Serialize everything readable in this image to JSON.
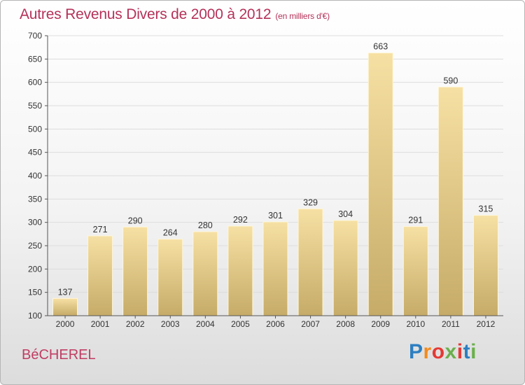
{
  "header": {
    "title": "Autres Revenus Divers de 2000 à 2012",
    "unit": "(en milliers d'€)"
  },
  "commune": "BéCHEREL",
  "logo": {
    "text": "Proxiti"
  },
  "chart_data": {
    "type": "bar",
    "categories": [
      "2000",
      "2001",
      "2002",
      "2003",
      "2004",
      "2005",
      "2006",
      "2007",
      "2008",
      "2009",
      "2010",
      "2011",
      "2012"
    ],
    "values": [
      137,
      271,
      290,
      264,
      280,
      292,
      301,
      329,
      304,
      663,
      291,
      590,
      315
    ],
    "title": "Autres Revenus Divers de 2000 à 2012",
    "subtitle": "(en milliers d'€)",
    "ylim": [
      100,
      700
    ],
    "yticks": [
      100,
      150,
      200,
      250,
      300,
      350,
      400,
      450,
      500,
      550,
      600,
      650,
      700
    ],
    "grid": true,
    "colors": {
      "bar_light": "#f5dea0",
      "bar_dark": "#c7ad6a",
      "grid": "#dddddd",
      "title": "#b5325a"
    }
  }
}
